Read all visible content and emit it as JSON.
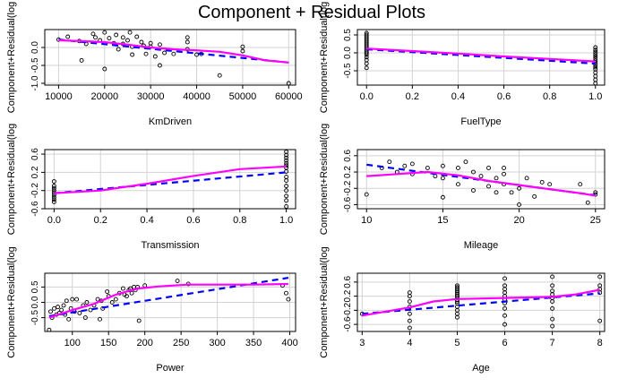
{
  "figure": {
    "title": "Component + Residual Plots"
  },
  "colors": {
    "points": "#000000",
    "component_line": "#0000ff",
    "residual_smooth": "#ff00ff",
    "grid": "#d3d3d3",
    "axis": "#000000"
  },
  "chart_data": [
    {
      "type": "scatter",
      "xlabel": "KmDriven",
      "ylabel": "Component+Residual(log",
      "xlim": [
        7000,
        61500
      ],
      "ylim": [
        -1.05,
        0.5
      ],
      "xticks": [
        10000,
        20000,
        30000,
        40000,
        50000,
        60000
      ],
      "xticklabels": [
        "10000",
        "20000",
        "30000",
        "40000",
        "50000",
        "60000"
      ],
      "yticks": [
        -1.0,
        -0.5,
        0.0
      ],
      "yticklabels": [
        "-1.0",
        "-0.5",
        "0.0"
      ],
      "grid": true,
      "points": [
        [
          10000,
          0.22
        ],
        [
          12000,
          0.3
        ],
        [
          14500,
          0.18
        ],
        [
          15000,
          -0.36
        ],
        [
          16000,
          0.1
        ],
        [
          17500,
          0.38
        ],
        [
          18000,
          0.28
        ],
        [
          19000,
          0.2
        ],
        [
          20000,
          -0.6
        ],
        [
          20000,
          0.42
        ],
        [
          21000,
          0.26
        ],
        [
          22000,
          0.12
        ],
        [
          22500,
          0.35
        ],
        [
          23000,
          -0.05
        ],
        [
          24000,
          0.1
        ],
        [
          24000,
          0.28
        ],
        [
          25000,
          0.2
        ],
        [
          25500,
          0.42
        ],
        [
          26000,
          0.02
        ],
        [
          26000,
          -0.2
        ],
        [
          27000,
          0.3
        ],
        [
          28000,
          0.15
        ],
        [
          28500,
          0.05
        ],
        [
          29000,
          -0.18
        ],
        [
          30000,
          0.12
        ],
        [
          30000,
          0.02
        ],
        [
          31000,
          -0.25
        ],
        [
          32000,
          0.08
        ],
        [
          32000,
          -0.5
        ],
        [
          33000,
          -0.15
        ],
        [
          35000,
          -0.18
        ],
        [
          38000,
          0.28
        ],
        [
          38000,
          0.15
        ],
        [
          38000,
          -0.05
        ],
        [
          40000,
          -0.2
        ],
        [
          41000,
          -0.18
        ],
        [
          45000,
          -0.78
        ],
        [
          50000,
          -0.1
        ],
        [
          50000,
          0.02
        ],
        [
          60000,
          -1.0
        ]
      ],
      "component_line": [
        [
          10000,
          0.22
        ],
        [
          60000,
          -0.42
        ]
      ],
      "residual_smooth": [
        [
          10000,
          0.2
        ],
        [
          15000,
          0.18
        ],
        [
          20000,
          0.15
        ],
        [
          25000,
          0.08
        ],
        [
          30000,
          0.0
        ],
        [
          35000,
          -0.05
        ],
        [
          40000,
          -0.08
        ],
        [
          45000,
          -0.12
        ],
        [
          50000,
          -0.22
        ],
        [
          55000,
          -0.36
        ],
        [
          60000,
          -0.42
        ]
      ]
    },
    {
      "type": "scatter",
      "xlabel": "FuelType",
      "ylabel": "Component+Residual(log",
      "xlim": [
        -0.04,
        1.04
      ],
      "ylim": [
        -0.9,
        0.65
      ],
      "xticks": [
        0.0,
        0.2,
        0.4,
        0.6,
        0.8,
        1.0
      ],
      "xticklabels": [
        "0.0",
        "0.2",
        "0.4",
        "0.6",
        "0.8",
        "1.0"
      ],
      "yticks": [
        -0.5,
        0.0,
        0.5
      ],
      "yticklabels": [
        "-0.5",
        "0.0",
        "0.5"
      ],
      "grid": true,
      "points": [
        [
          0,
          0.55
        ],
        [
          0,
          0.5
        ],
        [
          0,
          0.45
        ],
        [
          0,
          0.4
        ],
        [
          0,
          0.35
        ],
        [
          0,
          0.3
        ],
        [
          0,
          0.25
        ],
        [
          0,
          0.2
        ],
        [
          0,
          0.15
        ],
        [
          0,
          0.1
        ],
        [
          0,
          0.05
        ],
        [
          0,
          0.0
        ],
        [
          0,
          -0.05
        ],
        [
          0,
          -0.12
        ],
        [
          0,
          -0.2
        ],
        [
          0,
          -0.3
        ],
        [
          0,
          -0.42
        ],
        [
          1,
          0.15
        ],
        [
          1,
          0.08
        ],
        [
          1,
          0.02
        ],
        [
          1,
          -0.04
        ],
        [
          1,
          -0.1
        ],
        [
          1,
          -0.16
        ],
        [
          1,
          -0.22
        ],
        [
          1,
          -0.28
        ],
        [
          1,
          -0.34
        ],
        [
          1,
          -0.4
        ],
        [
          1,
          -0.46
        ],
        [
          1,
          -0.55
        ],
        [
          1,
          -0.65
        ],
        [
          1,
          -0.75
        ],
        [
          1,
          -0.85
        ]
      ],
      "component_line": [
        [
          0,
          0.1
        ],
        [
          1,
          -0.3
        ]
      ],
      "residual_smooth": [
        [
          0,
          0.12
        ],
        [
          0.2,
          0.05
        ],
        [
          0.4,
          -0.02
        ],
        [
          0.6,
          -0.1
        ],
        [
          0.8,
          -0.17
        ],
        [
          1,
          -0.24
        ]
      ]
    },
    {
      "type": "scatter",
      "xlabel": "Transmission",
      "ylabel": "Component+Residual(log",
      "xlim": [
        -0.04,
        1.04
      ],
      "ylim": [
        -0.6,
        0.7
      ],
      "xticks": [
        0.0,
        0.2,
        0.4,
        0.6,
        0.8,
        1.0
      ],
      "xticklabels": [
        "0.0",
        "0.2",
        "0.4",
        "0.6",
        "0.8",
        "1.0"
      ],
      "yticks": [
        -0.6,
        -0.2,
        0.2,
        0.6
      ],
      "yticklabels": [
        "-0.6",
        "-0.2",
        "0.2",
        "0.6"
      ],
      "grid": true,
      "points": [
        [
          0,
          0.0
        ],
        [
          0,
          -0.1
        ],
        [
          0,
          -0.15
        ],
        [
          0,
          -0.2
        ],
        [
          0,
          -0.25
        ],
        [
          0,
          -0.3
        ],
        [
          0,
          -0.35
        ],
        [
          0,
          -0.4
        ],
        [
          0,
          -0.45
        ],
        [
          1,
          0.65
        ],
        [
          1,
          0.58
        ],
        [
          1,
          0.52
        ],
        [
          1,
          0.46
        ],
        [
          1,
          0.4
        ],
        [
          1,
          0.35
        ],
        [
          1,
          0.3
        ],
        [
          1,
          0.22
        ],
        [
          1,
          0.1
        ],
        [
          1,
          0.02
        ],
        [
          1,
          -0.1
        ],
        [
          1,
          -0.2
        ],
        [
          1,
          -0.32
        ],
        [
          1,
          -0.42
        ],
        [
          1,
          -0.55
        ]
      ],
      "component_line": [
        [
          0,
          -0.26
        ],
        [
          1,
          0.2
        ]
      ],
      "residual_smooth": [
        [
          0,
          -0.26
        ],
        [
          0.2,
          -0.2
        ],
        [
          0.4,
          -0.05
        ],
        [
          0.6,
          0.12
        ],
        [
          0.8,
          0.27
        ],
        [
          1,
          0.33
        ]
      ]
    },
    {
      "type": "scatter",
      "xlabel": "Mileage",
      "ylabel": "Component+Residual(log",
      "xlim": [
        9.4,
        25.6
      ],
      "ylim": [
        -0.7,
        0.75
      ],
      "xticks": [
        10,
        15,
        20,
        25
      ],
      "xticklabels": [
        "10",
        "15",
        "20",
        "25"
      ],
      "yticks": [
        -0.6,
        -0.2,
        0.2,
        0.6
      ],
      "yticklabels": [
        "-0.6",
        "-0.2",
        "0.2",
        "0.6"
      ],
      "grid": true,
      "points": [
        [
          10,
          -0.35
        ],
        [
          11,
          0.3
        ],
        [
          11.5,
          0.45
        ],
        [
          12,
          0.2
        ],
        [
          12.5,
          0.35
        ],
        [
          13,
          0.15
        ],
        [
          13,
          0.4
        ],
        [
          14,
          0.3
        ],
        [
          14.5,
          0.1
        ],
        [
          15,
          -0.42
        ],
        [
          15,
          0.35
        ],
        [
          15,
          0.05
        ],
        [
          16,
          0.3
        ],
        [
          16,
          -0.1
        ],
        [
          16.5,
          0.45
        ],
        [
          17,
          0.2
        ],
        [
          17,
          -0.25
        ],
        [
          17.5,
          0.1
        ],
        [
          18,
          0.3
        ],
        [
          18,
          -0.15
        ],
        [
          18.5,
          -0.3
        ],
        [
          18.5,
          0.05
        ],
        [
          19,
          0.3
        ],
        [
          19,
          0.15
        ],
        [
          19,
          -0.1
        ],
        [
          19.5,
          -0.3
        ],
        [
          20,
          -0.6
        ],
        [
          20,
          -0.2
        ],
        [
          20.5,
          0.05
        ],
        [
          21,
          -0.4
        ],
        [
          21.5,
          -0.05
        ],
        [
          22,
          -0.1
        ],
        [
          24,
          -0.1
        ],
        [
          24.5,
          -0.55
        ],
        [
          25,
          -0.3
        ],
        [
          25,
          -0.35
        ]
      ],
      "component_line": [
        [
          10,
          0.38
        ],
        [
          25,
          -0.37
        ]
      ],
      "residual_smooth": [
        [
          10,
          0.1
        ],
        [
          12,
          0.15
        ],
        [
          14,
          0.2
        ],
        [
          16,
          0.12
        ],
        [
          18,
          -0.02
        ],
        [
          20,
          -0.12
        ],
        [
          22,
          -0.22
        ],
        [
          24,
          -0.32
        ],
        [
          25,
          -0.38
        ]
      ]
    },
    {
      "type": "scatter",
      "xlabel": "Power",
      "ylabel": "Component+Residual(log",
      "xlim": [
        62,
        408
      ],
      "ylim": [
        -0.95,
        0.95
      ],
      "xticks": [
        100,
        150,
        200,
        250,
        300,
        350,
        400
      ],
      "xticklabels": [
        "100",
        "150",
        "200",
        "250",
        "300",
        "350",
        "400"
      ],
      "yticks": [
        -0.5,
        0.0,
        0.5
      ],
      "yticklabels": [
        "-0.5",
        "0.0",
        "0.5"
      ],
      "grid": true,
      "points": [
        [
          68,
          -0.9
        ],
        [
          70,
          -0.3
        ],
        [
          72,
          -0.5
        ],
        [
          75,
          -0.2
        ],
        [
          78,
          -0.4
        ],
        [
          80,
          -0.15
        ],
        [
          82,
          -0.35
        ],
        [
          85,
          -0.25
        ],
        [
          88,
          -0.1
        ],
        [
          90,
          -0.4
        ],
        [
          92,
          0.05
        ],
        [
          95,
          -0.55
        ],
        [
          98,
          -0.2
        ],
        [
          100,
          0.1
        ],
        [
          103,
          -0.3
        ],
        [
          106,
          0.1
        ],
        [
          110,
          -0.35
        ],
        [
          115,
          -0.1
        ],
        [
          118,
          -0.5
        ],
        [
          120,
          0.0
        ],
        [
          125,
          -0.25
        ],
        [
          130,
          -0.1
        ],
        [
          135,
          0.1
        ],
        [
          138,
          -0.55
        ],
        [
          140,
          0.05
        ],
        [
          142,
          -0.2
        ],
        [
          148,
          0.35
        ],
        [
          150,
          0.2
        ],
        [
          155,
          0.0
        ],
        [
          160,
          0.1
        ],
        [
          165,
          0.3
        ],
        [
          170,
          0.45
        ],
        [
          172,
          0.25
        ],
        [
          175,
          0.2
        ],
        [
          178,
          0.4
        ],
        [
          180,
          0.45
        ],
        [
          182,
          0.3
        ],
        [
          185,
          0.5
        ],
        [
          187,
          0.4
        ],
        [
          190,
          0.5
        ],
        [
          192,
          -0.6
        ],
        [
          200,
          0.55
        ],
        [
          245,
          0.7
        ],
        [
          260,
          0.6
        ],
        [
          390,
          0.55
        ],
        [
          395,
          0.3
        ],
        [
          398,
          0.1
        ]
      ],
      "component_line": [
        [
          68,
          -0.45
        ],
        [
          398,
          0.8
        ]
      ],
      "residual_smooth": [
        [
          68,
          -0.5
        ],
        [
          100,
          -0.25
        ],
        [
          130,
          -0.05
        ],
        [
          160,
          0.25
        ],
        [
          190,
          0.45
        ],
        [
          220,
          0.52
        ],
        [
          260,
          0.58
        ],
        [
          300,
          0.58
        ],
        [
          350,
          0.58
        ],
        [
          398,
          0.6
        ]
      ]
    },
    {
      "type": "scatter",
      "xlabel": "Age",
      "ylabel": "Component+Residual(log",
      "xlim": [
        2.9,
        8.1
      ],
      "ylim": [
        -0.8,
        0.85
      ],
      "xticks": [
        3,
        4,
        5,
        6,
        7,
        8
      ],
      "xticklabels": [
        "3",
        "4",
        "5",
        "6",
        "7",
        "8"
      ],
      "yticks": [
        -0.6,
        -0.2,
        0.2,
        0.6
      ],
      "yticklabels": [
        "-0.6",
        "-0.2",
        "0.2",
        "0.6"
      ],
      "grid": true,
      "points": [
        [
          3,
          -0.3
        ],
        [
          4,
          0.3
        ],
        [
          4,
          0.2
        ],
        [
          4,
          0.05
        ],
        [
          4,
          -0.1
        ],
        [
          4,
          -0.3
        ],
        [
          4,
          -0.5
        ],
        [
          4,
          -0.7
        ],
        [
          5,
          0.5
        ],
        [
          5,
          0.45
        ],
        [
          5,
          0.4
        ],
        [
          5,
          0.35
        ],
        [
          5,
          0.3
        ],
        [
          5,
          0.25
        ],
        [
          5,
          0.2
        ],
        [
          5,
          0.15
        ],
        [
          5,
          0.1
        ],
        [
          5,
          0.05
        ],
        [
          5,
          0.0
        ],
        [
          5,
          -0.1
        ],
        [
          5,
          -0.2
        ],
        [
          5,
          -0.3
        ],
        [
          5,
          -0.4
        ],
        [
          6,
          0.7
        ],
        [
          6,
          0.5
        ],
        [
          6,
          0.4
        ],
        [
          6,
          0.3
        ],
        [
          6,
          0.2
        ],
        [
          6,
          0.1
        ],
        [
          6,
          0.0
        ],
        [
          6,
          -0.15
        ],
        [
          6,
          -0.35
        ],
        [
          6,
          -0.6
        ],
        [
          7,
          0.75
        ],
        [
          7,
          0.5
        ],
        [
          7,
          0.35
        ],
        [
          7,
          0.25
        ],
        [
          7,
          0.15
        ],
        [
          7,
          0.05
        ],
        [
          7,
          -0.15
        ],
        [
          7,
          -0.45
        ],
        [
          7,
          -0.65
        ],
        [
          8,
          0.75
        ],
        [
          8,
          0.5
        ],
        [
          8,
          0.4
        ],
        [
          8,
          0.3
        ],
        [
          8,
          -0.5
        ]
      ],
      "component_line": [
        [
          3,
          -0.3
        ],
        [
          8,
          0.28
        ]
      ],
      "residual_smooth": [
        [
          3,
          -0.35
        ],
        [
          4,
          -0.12
        ],
        [
          4.5,
          0.05
        ],
        [
          5,
          0.12
        ],
        [
          6,
          0.15
        ],
        [
          7,
          0.18
        ],
        [
          7.5,
          0.25
        ],
        [
          8,
          0.38
        ]
      ]
    }
  ]
}
